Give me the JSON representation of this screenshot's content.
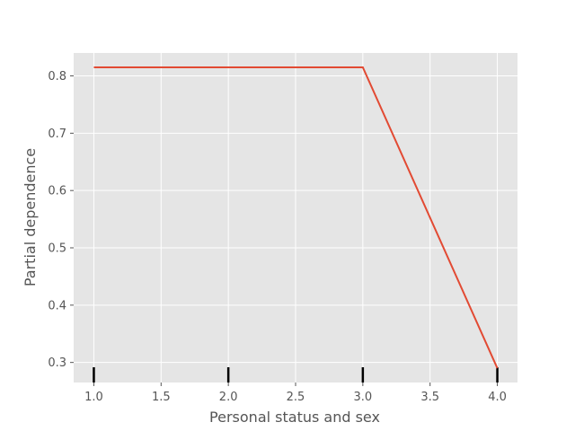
{
  "chart_data": {
    "type": "line",
    "title": "",
    "xlabel": "Personal status and sex",
    "ylabel": "Partial dependence",
    "xlim": [
      0.85,
      4.15
    ],
    "ylim": [
      0.265,
      0.84
    ],
    "x_ticks": [
      1.0,
      1.5,
      2.0,
      2.5,
      3.0,
      3.5,
      4.0
    ],
    "x_tick_labels": [
      "1.0",
      "1.5",
      "2.0",
      "2.5",
      "3.0",
      "3.5",
      "4.0"
    ],
    "y_ticks": [
      0.3,
      0.4,
      0.5,
      0.6,
      0.7,
      0.8
    ],
    "y_tick_labels": [
      "0.3",
      "0.4",
      "0.5",
      "0.6",
      "0.7",
      "0.8"
    ],
    "grid": true,
    "series": [
      {
        "x": [
          1.0,
          2.0,
          3.0,
          4.0
        ],
        "y": [
          0.815,
          0.815,
          0.815,
          0.29
        ]
      }
    ],
    "rug": [
      1.0,
      2.0,
      3.0,
      4.0
    ],
    "colors": {
      "line": "#e24a33",
      "background": "#e5e5e5",
      "grid": "#ffffff",
      "rug": "#000000",
      "text": "#555555"
    }
  }
}
